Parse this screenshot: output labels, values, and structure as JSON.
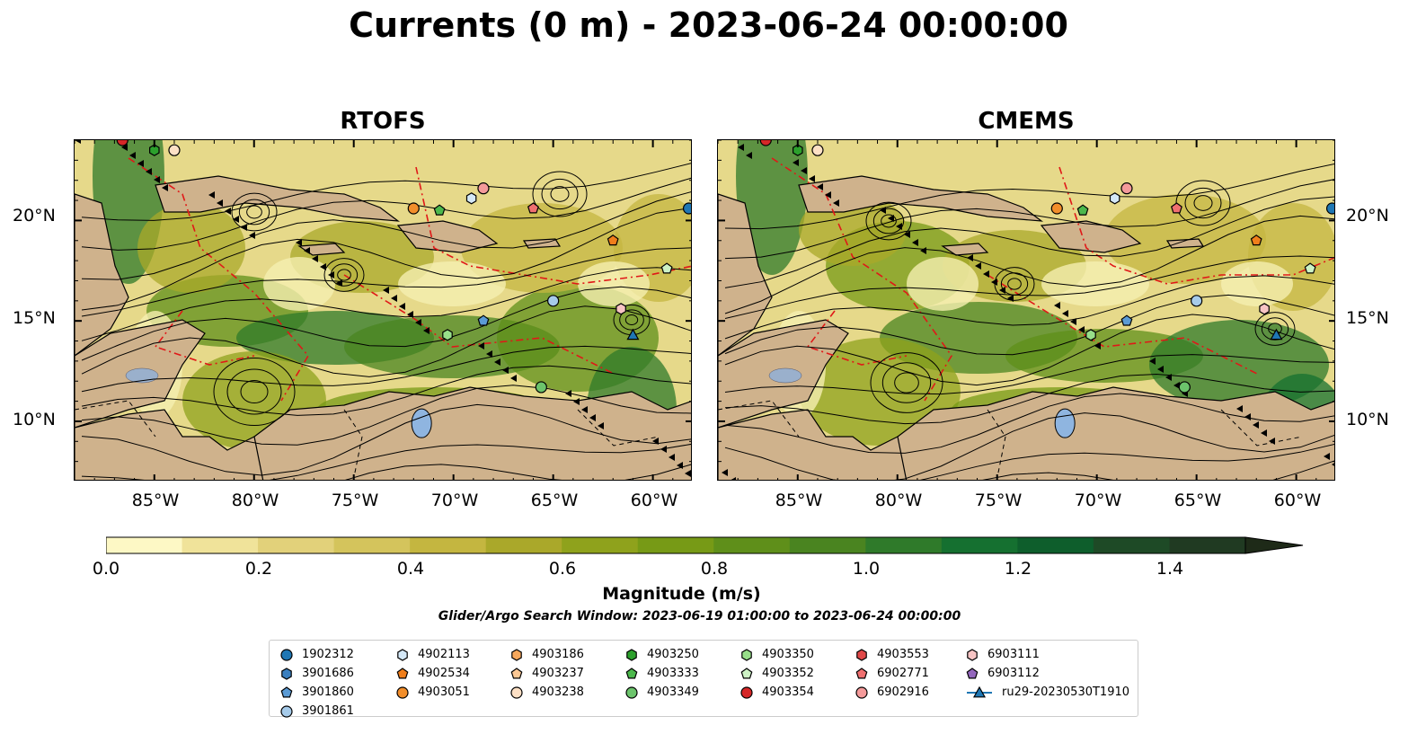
{
  "title": "Currents (0 m) - 2023-06-24 00:00:00",
  "panels": [
    {
      "title": "RTOFS"
    },
    {
      "title": "CMEMS"
    }
  ],
  "lat_labels": [
    "20°N",
    "15°N",
    "10°N"
  ],
  "lon_labels": [
    "85°W",
    "80°W",
    "75°W",
    "70°W",
    "65°W",
    "60°W"
  ],
  "colorbar": {
    "label": "Magnitude (m/s)",
    "ticks": [
      "0.0",
      "0.2",
      "0.4",
      "0.6",
      "0.8",
      "1.0",
      "1.2",
      "1.4"
    ],
    "min": 0.0,
    "max": 1.5,
    "extend": "max",
    "colors": [
      "#fdf8c5",
      "#f0e39a",
      "#e2d17a",
      "#d4c45c",
      "#c4b640",
      "#aaa82a",
      "#8fa21c",
      "#779a16",
      "#5f8f1a",
      "#4a8420",
      "#2f7a2a",
      "#157030",
      "#0e5e2c",
      "#1e4a26",
      "#203a22",
      "#1e2a18"
    ]
  },
  "search_window": "Glider/Argo Search Window: 2023-06-19 01:00:00 to 2023-06-24 00:00:00",
  "legend": [
    [
      {
        "label": "1902312",
        "marker": "circle",
        "color": "#1f77b4"
      },
      {
        "label": "3901686",
        "marker": "hexagon",
        "color": "#3a7fbf"
      },
      {
        "label": "3901860",
        "marker": "pentagon",
        "color": "#5b9bd5"
      },
      {
        "label": "3901861",
        "marker": "circle",
        "color": "#a6cbea"
      }
    ],
    [
      {
        "label": "4902113",
        "marker": "hexagon",
        "color": "#d4e8f7"
      },
      {
        "label": "4902534",
        "marker": "pentagon",
        "color": "#f07e1b"
      },
      {
        "label": "4903051",
        "marker": "circle",
        "color": "#f28e2b"
      }
    ],
    [
      {
        "label": "4903186",
        "marker": "hexagon",
        "color": "#f7a85c"
      },
      {
        "label": "4903237",
        "marker": "pentagon",
        "color": "#fcc894"
      },
      {
        "label": "4903238",
        "marker": "circle",
        "color": "#fde0c5"
      }
    ],
    [
      {
        "label": "4903250",
        "marker": "hexagon",
        "color": "#2ca02c"
      },
      {
        "label": "4903333",
        "marker": "pentagon",
        "color": "#4cb84c"
      },
      {
        "label": "4903349",
        "marker": "circle",
        "color": "#6cc46c"
      }
    ],
    [
      {
        "label": "4903350",
        "marker": "hexagon",
        "color": "#98df8a"
      },
      {
        "label": "4903352",
        "marker": "pentagon",
        "color": "#cdf2c5"
      },
      {
        "label": "4903354",
        "marker": "circle",
        "color": "#d62728"
      }
    ],
    [
      {
        "label": "4903553",
        "marker": "hexagon",
        "color": "#e04848"
      },
      {
        "label": "6902771",
        "marker": "pentagon",
        "color": "#f07070"
      },
      {
        "label": "6902916",
        "marker": "circle",
        "color": "#f49a9a"
      }
    ],
    [
      {
        "label": "6903111",
        "marker": "hexagon",
        "color": "#f7c4c4"
      },
      {
        "label": "6903112",
        "marker": "pentagon",
        "color": "#9467bd"
      },
      {
        "label": "ru29-20230530T1910",
        "marker": "triangle-line",
        "color": "#1f77b4"
      }
    ]
  ],
  "chart_data": {
    "type": "heatmap",
    "extent": {
      "lon": [
        -89,
        -58
      ],
      "lat": [
        7,
        24
      ]
    },
    "floats": [
      {
        "id": "4903250",
        "lon": -85.0,
        "lat": 23.5,
        "marker": "hexagon",
        "color": "#2ca02c"
      },
      {
        "id": "4903238",
        "lon": -84.0,
        "lat": 23.5,
        "marker": "circle",
        "color": "#fde0c5"
      },
      {
        "id": "4903354",
        "lon": -86.6,
        "lat": 24.0,
        "marker": "circle",
        "color": "#d62728"
      },
      {
        "id": "4903051",
        "lon": -72.0,
        "lat": 20.6,
        "marker": "circle",
        "color": "#f28e2b"
      },
      {
        "id": "4903333",
        "lon": -70.7,
        "lat": 20.5,
        "marker": "pentagon",
        "color": "#4cb84c"
      },
      {
        "id": "4902113",
        "lon": -69.1,
        "lat": 21.1,
        "marker": "hexagon",
        "color": "#d4e8f7"
      },
      {
        "id": "6902916",
        "lon": -68.5,
        "lat": 21.6,
        "marker": "circle",
        "color": "#f49a9a"
      },
      {
        "id": "6902771",
        "lon": -66.0,
        "lat": 20.6,
        "marker": "pentagon",
        "color": "#f07070"
      },
      {
        "id": "1902312",
        "lon": -58.2,
        "lat": 20.6,
        "marker": "circle",
        "color": "#1f77b4"
      },
      {
        "id": "4902534",
        "lon": -62.0,
        "lat": 19.0,
        "marker": "pentagon",
        "color": "#f07e1b"
      },
      {
        "id": "4903352",
        "lon": -59.3,
        "lat": 17.6,
        "marker": "pentagon",
        "color": "#cdf2c5"
      },
      {
        "id": "3901861",
        "lon": -65.0,
        "lat": 16.0,
        "marker": "circle",
        "color": "#a6cbea"
      },
      {
        "id": "6903111",
        "lon": -61.6,
        "lat": 15.6,
        "marker": "hexagon",
        "color": "#f7c4c4"
      },
      {
        "id": "3901860",
        "lon": -68.5,
        "lat": 15.0,
        "marker": "pentagon",
        "color": "#5b9bd5"
      },
      {
        "id": "4903350",
        "lon": -70.3,
        "lat": 14.3,
        "marker": "hexagon",
        "color": "#98df8a"
      },
      {
        "id": "ru29-20230530T1910",
        "lon": -61.0,
        "lat": 14.3,
        "marker": "triangle",
        "color": "#1f77b4"
      },
      {
        "id": "4903349",
        "lon": -65.6,
        "lat": 11.7,
        "marker": "circle",
        "color": "#6cc46c"
      }
    ]
  }
}
